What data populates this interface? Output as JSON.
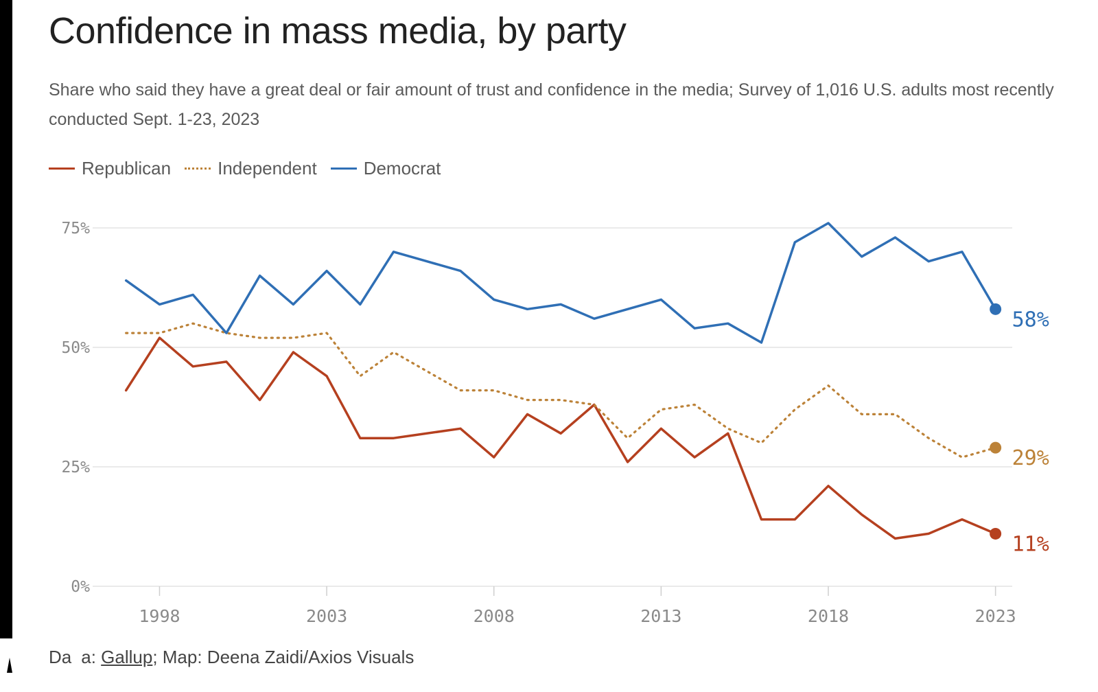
{
  "header": {
    "title": "Confidence in mass media, by party",
    "subtitle": "Share who said they have a great deal or fair amount of trust and confidence in the media; Survey of 1,016 U.S. adults most recently conducted Sept. 1-23, 2023"
  },
  "footer": {
    "prefix_a": "Da",
    "prefix_b": "a: ",
    "source_link": "Gallup",
    "credit": "; Map: Deena Zaidi/Axios Visuals"
  },
  "colors": {
    "republican": "#b5401f",
    "independent": "#bc8238",
    "democrat": "#2f6fb5",
    "grid": "#e4e4e4",
    "tick_text": "#8a8a8a"
  },
  "chart_data": {
    "type": "line",
    "title": "Confidence in mass media, by party",
    "x": [
      1997,
      1998,
      1999,
      2000,
      2001,
      2002,
      2003,
      2004,
      2005,
      2007,
      2008,
      2009,
      2010,
      2011,
      2012,
      2013,
      2014,
      2015,
      2016,
      2017,
      2018,
      2019,
      2020,
      2021,
      2022,
      2023
    ],
    "xlim": [
      1996,
      2023.5
    ],
    "xticks": [
      1998,
      2003,
      2008,
      2013,
      2018,
      2023
    ],
    "ylim": [
      0,
      75
    ],
    "yticks": [
      0,
      25,
      50,
      75
    ],
    "ytick_labels": [
      "0%",
      "25%",
      "50%",
      "75%"
    ],
    "grid": true,
    "legend_position": "top-left",
    "series": [
      {
        "name": "Republican",
        "style": "solid",
        "values": [
          41,
          52,
          46,
          47,
          39,
          49,
          44,
          31,
          31,
          33,
          27,
          36,
          32,
          38,
          26,
          33,
          27,
          32,
          14,
          14,
          21,
          15,
          10,
          11,
          14,
          11
        ],
        "end_label": "11%"
      },
      {
        "name": "Independent",
        "style": "dotted",
        "values": [
          53,
          53,
          55,
          53,
          52,
          52,
          53,
          44,
          49,
          41,
          41,
          39,
          39,
          38,
          31,
          37,
          38,
          33,
          30,
          37,
          42,
          36,
          36,
          31,
          27,
          29
        ],
        "end_label": "29%"
      },
      {
        "name": "Democrat",
        "style": "solid",
        "values": [
          64,
          59,
          61,
          53,
          65,
          59,
          66,
          59,
          70,
          66,
          60,
          58,
          59,
          56,
          58,
          60,
          54,
          55,
          51,
          72,
          76,
          69,
          73,
          68,
          70,
          58
        ],
        "end_label": "58%"
      }
    ]
  }
}
